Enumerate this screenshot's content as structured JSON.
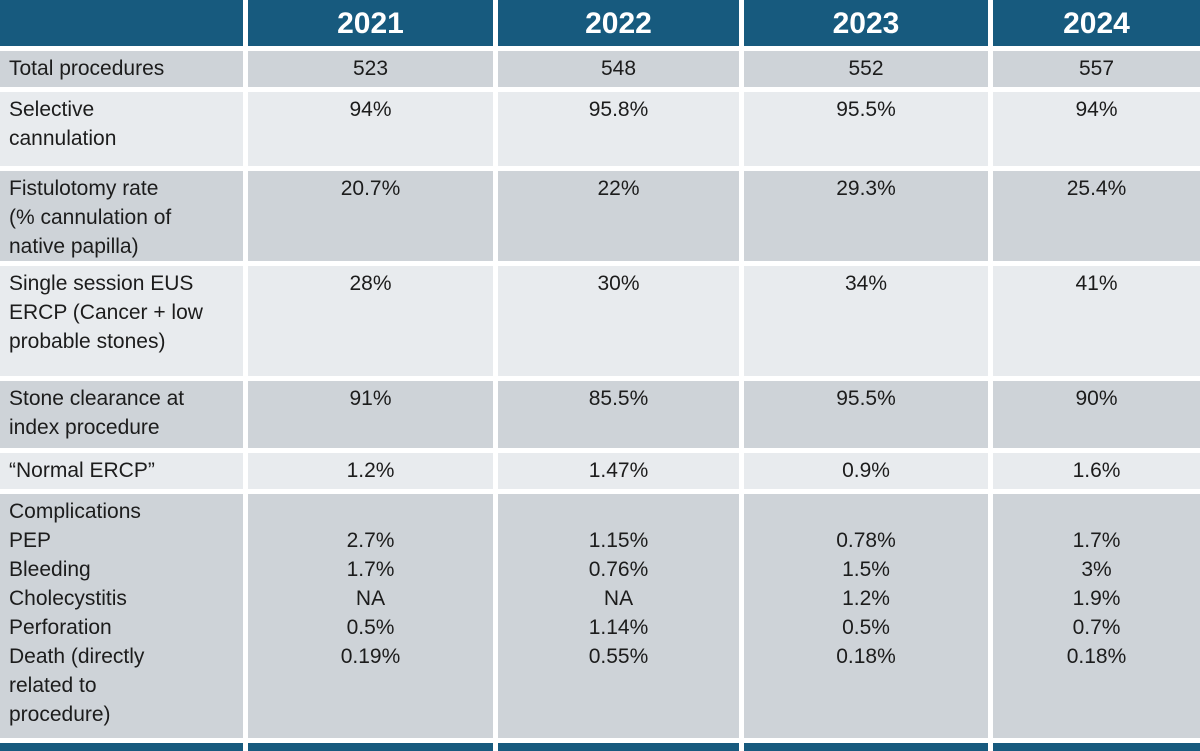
{
  "table": {
    "title_semantic": "ERCP annual outcomes table",
    "header": {
      "corner": "",
      "years": [
        "2021",
        "2022",
        "2023",
        "2024"
      ]
    },
    "rows": [
      {
        "label": "Total procedures",
        "shade": "dark",
        "values": [
          "523",
          "548",
          "552",
          "557"
        ]
      },
      {
        "label": "Selective\ncannulation",
        "shade": "light",
        "values": [
          "94%",
          "95.8%",
          "95.5%",
          "94%"
        ]
      },
      {
        "label": "Fistulotomy rate\n(% cannulation of\nnative papilla)",
        "shade": "dark",
        "values": [
          "20.7%",
          "22%",
          "29.3%",
          "25.4%"
        ]
      },
      {
        "label": "Single session EUS\nERCP (Cancer + low\nprobable stones)",
        "shade": "light",
        "values": [
          "28%",
          "30%",
          "34%",
          "41%"
        ]
      },
      {
        "label": "Stone clearance at\nindex procedure",
        "shade": "dark",
        "values": [
          "91%",
          "85.5%",
          "95.5%",
          "90%"
        ]
      },
      {
        "label": "“Normal ERCP”",
        "shade": "light",
        "values": [
          "1.2%",
          "1.47%",
          "0.9%",
          "1.6%"
        ]
      },
      {
        "label": "Complications\nPEP\nBleeding\nCholecystitis\nPerforation\nDeath (directly\nrelated to\nprocedure)",
        "shade": "dark",
        "values": [
          "\n2.7%\n1.7%\nNA\n0.5%\n0.19%",
          "\n1.15%\n0.76%\nNA\n1.14%\n0.55%",
          "\n0.78%\n1.5%\n1.2%\n0.5%\n0.18%",
          "\n1.7%\n3%\n1.9%\n0.7%\n0.18%"
        ]
      }
    ]
  },
  "colors": {
    "header_bg": "#175A7E",
    "header_text": "#ffffff",
    "row_dark": "#ced3d8",
    "row_light": "#e8ebee",
    "body_text": "#1c1c1c",
    "gutter": "#ffffff"
  }
}
